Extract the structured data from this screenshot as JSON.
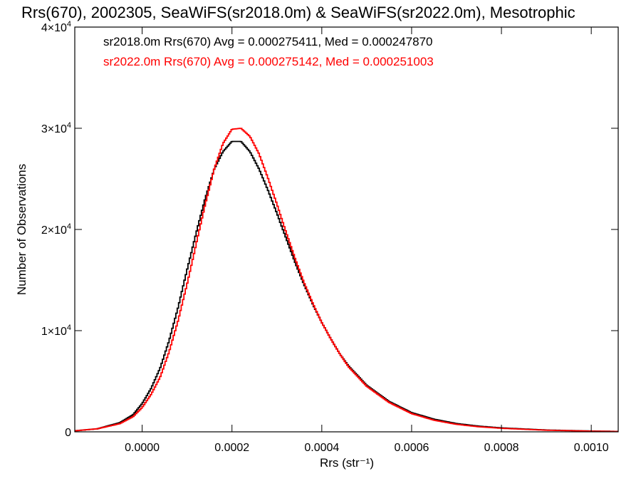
{
  "chart_data": {
    "type": "line",
    "title": "Rrs(670), 2002305, SeaWiFS(sr2018.0m) & SeaWiFS(sr2022.0m), Mesotrophic",
    "xlabel": "Rrs (str⁻¹)",
    "ylabel": "Number of Observations",
    "xlim": [
      -0.00015,
      0.00106
    ],
    "ylim": [
      0,
      40000
    ],
    "x_ticks": [
      {
        "value": 0.0,
        "label": "0.0000"
      },
      {
        "value": 0.0002,
        "label": "0.0002"
      },
      {
        "value": 0.0004,
        "label": "0.0004"
      },
      {
        "value": 0.0006,
        "label": "0.0006"
      },
      {
        "value": 0.0008,
        "label": "0.0008"
      },
      {
        "value": 0.001,
        "label": "0.0010"
      }
    ],
    "y_ticks": [
      {
        "value": 0,
        "label": "0",
        "exp": ""
      },
      {
        "value": 10000,
        "label": "1×10",
        "exp": "4"
      },
      {
        "value": 20000,
        "label": "2×10",
        "exp": "4"
      },
      {
        "value": 30000,
        "label": "3×10",
        "exp": "4"
      },
      {
        "value": 40000,
        "label": "4×10",
        "exp": "4"
      }
    ],
    "legend_position": "top-left",
    "series": [
      {
        "name": "sr2018.0m",
        "color": "#000000",
        "legend": "sr2018.0m Rrs(670) Avg = 0.000275411, Med = 0.000247870",
        "x": [
          -0.00015,
          -0.0001,
          -5e-05,
          -2e-05,
          0.0,
          2e-05,
          4e-05,
          6e-05,
          8e-05,
          0.0001,
          0.00012,
          0.00014,
          0.00016,
          0.00018,
          0.0002,
          0.00022,
          0.00024,
          0.00026,
          0.00028,
          0.0003,
          0.00032,
          0.00034,
          0.00036,
          0.00038,
          0.0004,
          0.00042,
          0.00044,
          0.00046,
          0.0005,
          0.00055,
          0.0006,
          0.00065,
          0.0007,
          0.00075,
          0.0008,
          0.0009,
          0.001,
          0.00106
        ],
        "y": [
          100,
          300,
          900,
          1700,
          2800,
          4300,
          6300,
          9000,
          12300,
          16000,
          19600,
          23000,
          25900,
          27700,
          28700,
          28700,
          27700,
          26000,
          23900,
          21600,
          19200,
          16800,
          14600,
          12600,
          10800,
          9200,
          7700,
          6500,
          4600,
          3000,
          1900,
          1250,
          820,
          560,
          390,
          180,
          80,
          40
        ]
      },
      {
        "name": "sr2022.0m",
        "color": "#ff0000",
        "legend": "sr2022.0m Rrs(670) Avg = 0.000275142, Med = 0.000251003",
        "x": [
          -0.00015,
          -0.0001,
          -5e-05,
          -2e-05,
          0.0,
          2e-05,
          4e-05,
          6e-05,
          8e-05,
          0.0001,
          0.00012,
          0.00014,
          0.00016,
          0.00018,
          0.0002,
          0.00022,
          0.00024,
          0.00026,
          0.00028,
          0.0003,
          0.00032,
          0.00034,
          0.00036,
          0.00038,
          0.0004,
          0.00042,
          0.00044,
          0.00046,
          0.0005,
          0.00055,
          0.0006,
          0.00065,
          0.0007,
          0.00075,
          0.0008,
          0.0009,
          0.001,
          0.00106
        ],
        "y": [
          100,
          300,
          800,
          1500,
          2400,
          3700,
          5400,
          7900,
          11000,
          14600,
          18500,
          22400,
          25900,
          28500,
          29900,
          30000,
          29200,
          27500,
          25100,
          22500,
          19800,
          17200,
          14800,
          12700,
          10800,
          9200,
          7700,
          6400,
          4500,
          2900,
          1800,
          1150,
          740,
          500,
          350,
          160,
          70,
          35
        ]
      }
    ]
  }
}
